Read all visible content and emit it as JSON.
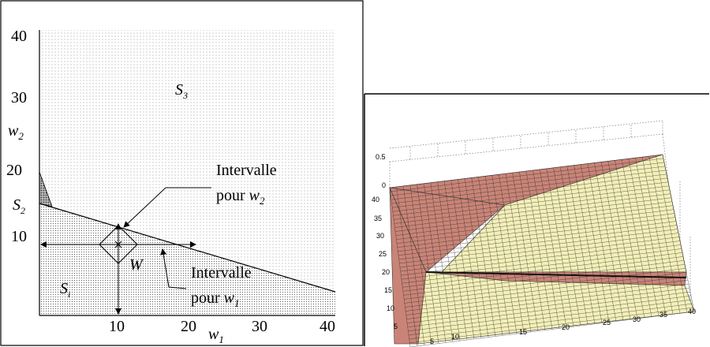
{
  "left_panel": {
    "y_ticks": [
      "40",
      "30",
      "20",
      "10"
    ],
    "x_ticks": [
      "10",
      "20",
      "30",
      "40"
    ],
    "w2": {
      "base": "w",
      "sub": "2"
    },
    "w1": {
      "base": "w",
      "sub": "1"
    },
    "region_s3": {
      "base": "S",
      "sub": "3"
    },
    "region_s2": {
      "base": "S",
      "sub": "2"
    },
    "region_s1": {
      "base": "S",
      "sub": "i"
    },
    "point_w": "W",
    "interval_w2": {
      "line1": "Intervalle",
      "line2": "pour ",
      "var": "w",
      "sub": "2"
    },
    "interval_w1": {
      "line1": "Intervalle",
      "line2": "pour ",
      "var": "w",
      "sub": "1"
    }
  },
  "right_panel": {
    "z_ticks": [
      "0.5",
      "0"
    ],
    "y_ticks": [
      "40",
      "35",
      "30",
      "25",
      "20",
      "15",
      "10",
      "5"
    ],
    "x_ticks": [
      "5",
      "10",
      "15",
      "20",
      "25",
      "30",
      "35",
      "40"
    ],
    "colors": {
      "pink": "#c98477",
      "yellow": "#f3efb8",
      "mesh": "#2a2a2a"
    }
  }
}
